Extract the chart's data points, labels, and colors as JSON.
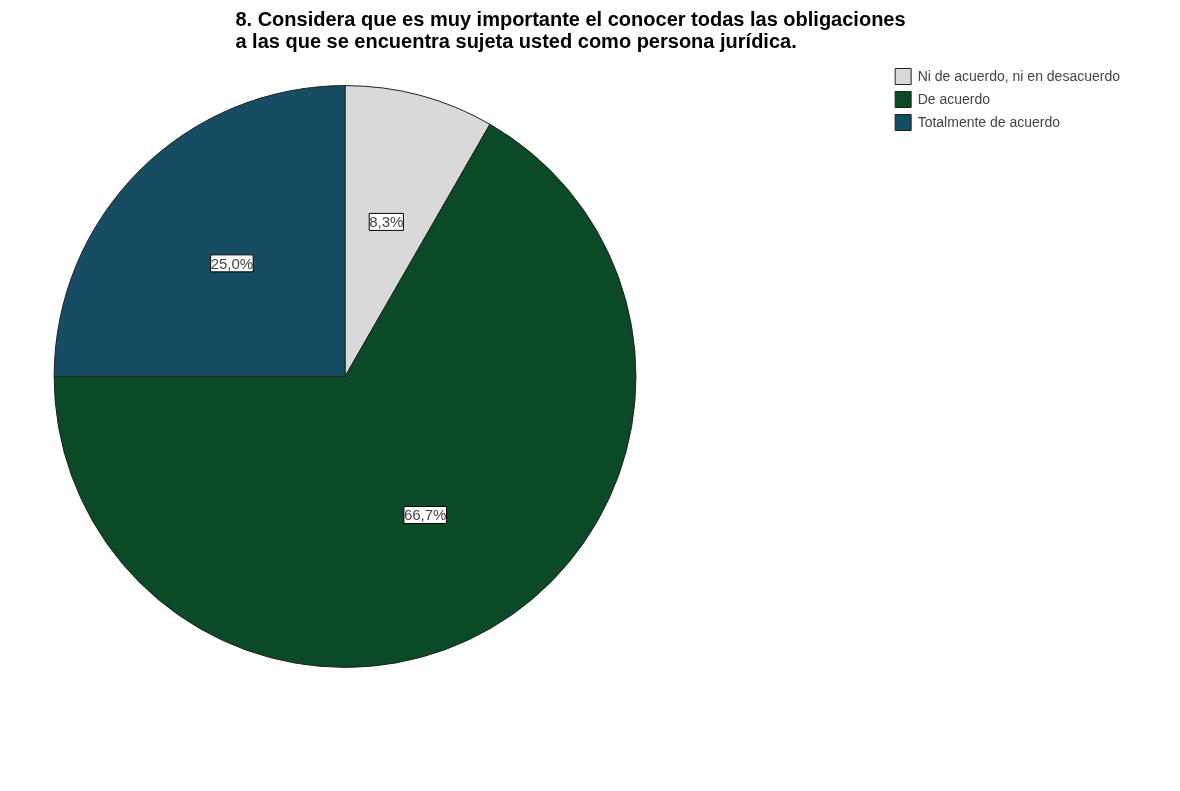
{
  "chart_data": {
    "type": "pie",
    "title": "8. Considera que es muy importante el conocer todas las obligaciones a las que se encuentra sujeta usted como persona jurídica.",
    "categories": [
      "Ni de acuerdo, ni en desacuerdo",
      "De acuerdo",
      "Totalmente de acuerdo"
    ],
    "values": [
      8.3,
      66.7,
      25.0
    ],
    "colors": [
      "#d9d9d9",
      "#0b4a26",
      "#174d63"
    ],
    "value_labels": [
      "8,3%",
      "66,7%",
      "25,0%"
    ],
    "legend": "top right"
  }
}
